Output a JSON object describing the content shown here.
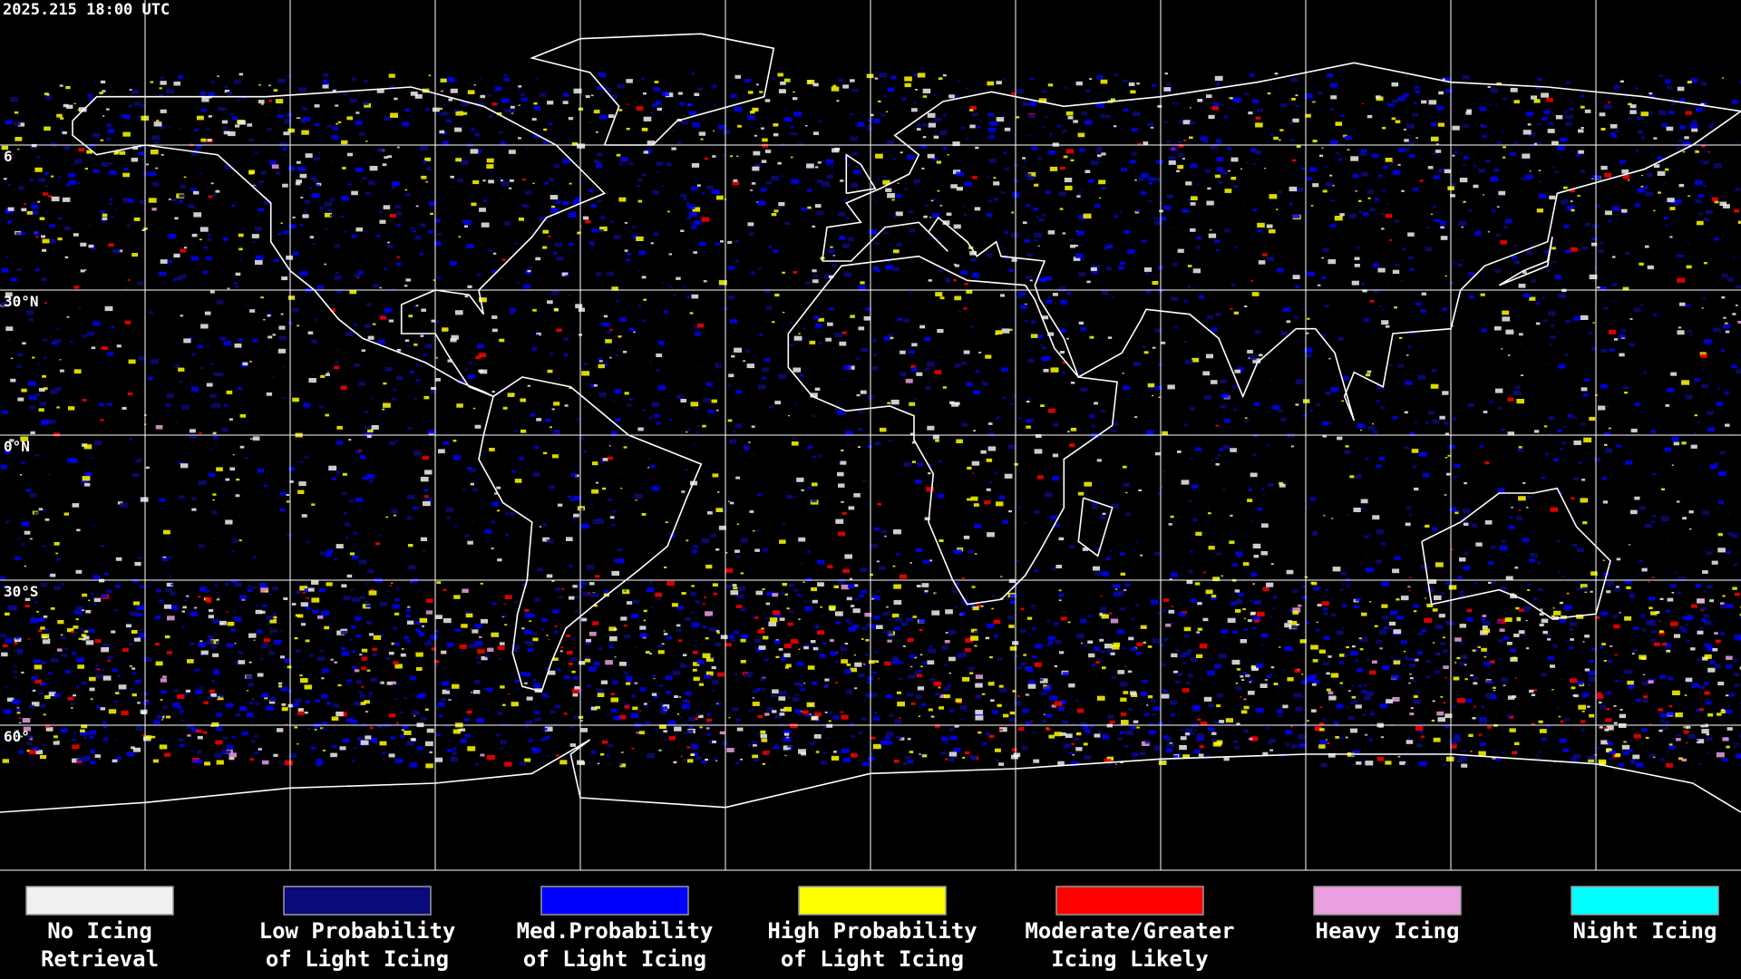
{
  "header": {
    "timestamp": "2025.215 18:00 UTC"
  },
  "lat_labels": [
    "6",
    "30°N",
    "0°N",
    "30°S",
    "60°"
  ],
  "legend": [
    {
      "lines": [
        "No Icing",
        "Retrieval"
      ],
      "color": "#f0f0f0"
    },
    {
      "lines": [
        "Low Probability",
        "of Light Icing"
      ],
      "color": "#0a0a7a"
    },
    {
      "lines": [
        "Med.Probability",
        "of Light Icing"
      ],
      "color": "#0000ff"
    },
    {
      "lines": [
        "High Probability",
        "of Light Icing"
      ],
      "color": "#ffff00"
    },
    {
      "lines": [
        "Moderate/Greater",
        "Icing Likely"
      ],
      "color": "#ff0000"
    },
    {
      "lines": [
        "Heavy Icing"
      ],
      "color": "#eaa0e0"
    },
    {
      "lines": [
        "Night Icing"
      ],
      "color": "#00ffff"
    }
  ]
}
